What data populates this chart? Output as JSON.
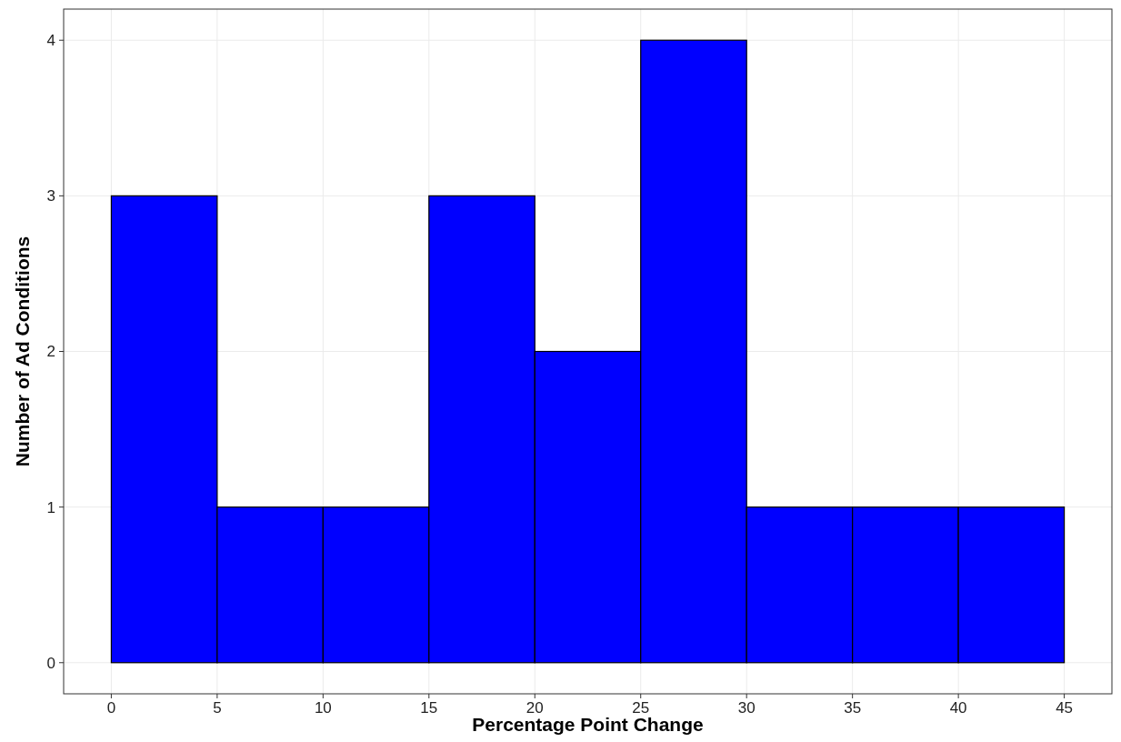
{
  "chart_data": {
    "type": "histogram",
    "xlabel": "Percentage Point Change",
    "ylabel": "Number of Ad Conditions",
    "bins": [
      0,
      5,
      10,
      15,
      20,
      25,
      30,
      35,
      40,
      45
    ],
    "values": [
      3,
      1,
      1,
      3,
      2,
      4,
      1,
      1,
      1
    ],
    "color": "#0000ff",
    "xlim": [
      -2.25,
      47.25
    ],
    "xticks": [
      0,
      5,
      10,
      15,
      20,
      25,
      30,
      35,
      40,
      45
    ],
    "ylim": [
      -0.2,
      4.2
    ],
    "yticks": [
      0,
      1,
      2,
      3,
      4
    ],
    "grid": true
  }
}
